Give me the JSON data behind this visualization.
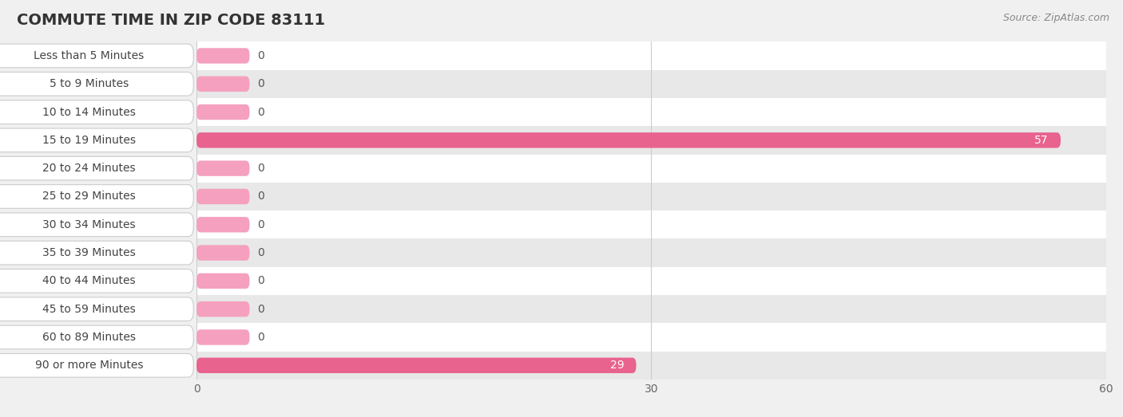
{
  "title": "COMMUTE TIME IN ZIP CODE 83111",
  "source_text": "Source: ZipAtlas.com",
  "categories": [
    "Less than 5 Minutes",
    "5 to 9 Minutes",
    "10 to 14 Minutes",
    "15 to 19 Minutes",
    "20 to 24 Minutes",
    "25 to 29 Minutes",
    "30 to 34 Minutes",
    "35 to 39 Minutes",
    "40 to 44 Minutes",
    "45 to 59 Minutes",
    "60 to 89 Minutes",
    "90 or more Minutes"
  ],
  "values": [
    0,
    0,
    0,
    57,
    0,
    0,
    0,
    0,
    0,
    0,
    0,
    29
  ],
  "bar_color_full": "#e8638e",
  "bar_color_zero": "#f5a0be",
  "background_color": "#f0f0f0",
  "row_bg_light": "#ffffff",
  "row_bg_dark": "#e8e8e8",
  "title_color": "#333333",
  "label_color": "#444444",
  "value_color_inside": "#ffffff",
  "value_color_outside": "#555555",
  "label_box_color": "#ffffff",
  "label_box_border": "#dddddd",
  "xlim": [
    0,
    60
  ],
  "xticks": [
    0,
    30,
    60
  ],
  "title_fontsize": 14,
  "label_fontsize": 10,
  "tick_fontsize": 10,
  "source_fontsize": 9
}
